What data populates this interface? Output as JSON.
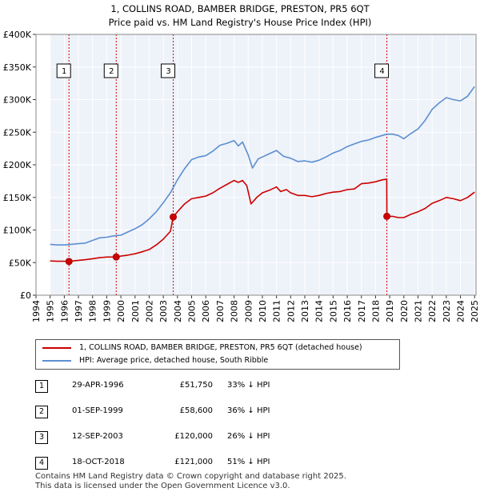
{
  "title_line1": "1, COLLINS ROAD, BAMBER BRIDGE, PRESTON, PR5 6QT",
  "title_line2": "Price paid vs. HM Land Registry's House Price Index (HPI)",
  "legend": {
    "property_label": "1, COLLINS ROAD, BAMBER BRIDGE, PRESTON, PR5 6QT (detached house)",
    "hpi_label": "HPI: Average price, detached house, South Ribble",
    "property_color": "#cc0000",
    "hpi_color": "#5b8fd0"
  },
  "sales": [
    {
      "num": "1",
      "date": "29-APR-1996",
      "price": "£51,750",
      "hpi": "33% ↓ HPI"
    },
    {
      "num": "2",
      "date": "01-SEP-1999",
      "price": "£58,600",
      "hpi": "36% ↓ HPI"
    },
    {
      "num": "3",
      "date": "12-SEP-2003",
      "price": "£120,000",
      "hpi": "26% ↓ HPI"
    },
    {
      "num": "4",
      "date": "18-OCT-2018",
      "price": "£121,000",
      "hpi": "51% ↓ HPI"
    }
  ],
  "footer_line1": "Contains HM Land Registry data © Crown copyright and database right 2025.",
  "footer_line2": "This data is licensed under the Open Government Licence v3.0.",
  "chart_data": {
    "type": "line",
    "title": "1, COLLINS ROAD, BAMBER BRIDGE, PRESTON, PR5 6QT — Price paid vs. HM Land Registry's House Price Index (HPI)",
    "xlabel": "",
    "ylabel": "",
    "xlim": [
      1994,
      2025.1
    ],
    "ylim": [
      0,
      400000
    ],
    "x_ticks": [
      "1994",
      "1995",
      "1996",
      "1997",
      "1998",
      "1999",
      "2000",
      "2001",
      "2002",
      "2003",
      "2004",
      "2005",
      "2006",
      "2007",
      "2008",
      "2009",
      "2010",
      "2011",
      "2012",
      "2013",
      "2014",
      "2015",
      "2016",
      "2017",
      "2018",
      "2019",
      "2020",
      "2021",
      "2022",
      "2023",
      "2024",
      "2025"
    ],
    "y_ticks": [
      {
        "value": 0,
        "label": "£0"
      },
      {
        "value": 50000,
        "label": "£50K"
      },
      {
        "value": 100000,
        "label": "£100K"
      },
      {
        "value": 150000,
        "label": "£150K"
      },
      {
        "value": 200000,
        "label": "£200K"
      },
      {
        "value": 250000,
        "label": "£250K"
      },
      {
        "value": 300000,
        "label": "£300K"
      },
      {
        "value": 350000,
        "label": "£350K"
      },
      {
        "value": 400000,
        "label": "£400K"
      }
    ],
    "grid": true,
    "data_start": 1995,
    "series": [
      {
        "name": "1, COLLINS ROAD, BAMBER BRIDGE, PRESTON, PR5 6QT (detached house)",
        "color": "#cc0000",
        "points": [
          [
            1995,
            52500
          ],
          [
            1995.5,
            52000
          ],
          [
            1996.0,
            52000
          ],
          [
            1996.33,
            51750
          ],
          [
            1996.8,
            53000
          ],
          [
            1997.5,
            54500
          ],
          [
            1998.0,
            56000
          ],
          [
            1998.5,
            57500
          ],
          [
            1999.0,
            58500
          ],
          [
            1999.67,
            58600
          ],
          [
            2000.0,
            60000
          ],
          [
            2000.5,
            61500
          ],
          [
            2001.0,
            63500
          ],
          [
            2001.5,
            66500
          ],
          [
            2002.0,
            70000
          ],
          [
            2002.5,
            77000
          ],
          [
            2003.0,
            86000
          ],
          [
            2003.5,
            98000
          ],
          [
            2003.7,
            120000
          ],
          [
            2004.0,
            128000
          ],
          [
            2004.5,
            140000
          ],
          [
            2005.0,
            148000
          ],
          [
            2005.5,
            150000
          ],
          [
            2006.0,
            152000
          ],
          [
            2006.5,
            157000
          ],
          [
            2007.0,
            164000
          ],
          [
            2007.5,
            170000
          ],
          [
            2008.0,
            176000
          ],
          [
            2008.3,
            173000
          ],
          [
            2008.6,
            176000
          ],
          [
            2008.9,
            168000
          ],
          [
            2009.2,
            140000
          ],
          [
            2009.6,
            150000
          ],
          [
            2010.0,
            157000
          ],
          [
            2010.5,
            161000
          ],
          [
            2011.0,
            166000
          ],
          [
            2011.3,
            159000
          ],
          [
            2011.7,
            162000
          ],
          [
            2012.0,
            157000
          ],
          [
            2012.5,
            153000
          ],
          [
            2013.0,
            153000
          ],
          [
            2013.5,
            151000
          ],
          [
            2014.0,
            153000
          ],
          [
            2014.5,
            156000
          ],
          [
            2015.0,
            158000
          ],
          [
            2015.5,
            159000
          ],
          [
            2016.0,
            162000
          ],
          [
            2016.5,
            163000
          ],
          [
            2017.0,
            171000
          ],
          [
            2017.5,
            172000
          ],
          [
            2018.0,
            174000
          ],
          [
            2018.5,
            177000
          ],
          [
            2018.79,
            178000
          ],
          [
            2018.8,
            121000
          ],
          [
            2019.2,
            121000
          ],
          [
            2019.6,
            119000
          ],
          [
            2020.0,
            119000
          ],
          [
            2020.5,
            124000
          ],
          [
            2021.0,
            128000
          ],
          [
            2021.5,
            133000
          ],
          [
            2022.0,
            141000
          ],
          [
            2022.5,
            145000
          ],
          [
            2023.0,
            150000
          ],
          [
            2023.5,
            148000
          ],
          [
            2024.0,
            145000
          ],
          [
            2024.5,
            150000
          ],
          [
            2025.0,
            158000
          ]
        ]
      },
      {
        "name": "HPI: Average price, detached house, South Ribble",
        "color": "#5b8fd0",
        "points": [
          [
            1995,
            78000
          ],
          [
            1995.5,
            77000
          ],
          [
            1996.0,
            77000
          ],
          [
            1996.5,
            78000
          ],
          [
            1997.0,
            79000
          ],
          [
            1997.5,
            80000
          ],
          [
            1998.0,
            84000
          ],
          [
            1998.5,
            88000
          ],
          [
            1999.0,
            89000
          ],
          [
            1999.5,
            91000
          ],
          [
            2000.0,
            92000
          ],
          [
            2000.5,
            97000
          ],
          [
            2001.0,
            102000
          ],
          [
            2001.5,
            108000
          ],
          [
            2002.0,
            117000
          ],
          [
            2002.5,
            128000
          ],
          [
            2003.0,
            142000
          ],
          [
            2003.5,
            157000
          ],
          [
            2004.0,
            177000
          ],
          [
            2004.5,
            194000
          ],
          [
            2005.0,
            208000
          ],
          [
            2005.5,
            212000
          ],
          [
            2006.0,
            214000
          ],
          [
            2006.5,
            221000
          ],
          [
            2007.0,
            230000
          ],
          [
            2007.5,
            233000
          ],
          [
            2008.0,
            237000
          ],
          [
            2008.3,
            229000
          ],
          [
            2008.6,
            235000
          ],
          [
            2009.0,
            215000
          ],
          [
            2009.3,
            195000
          ],
          [
            2009.7,
            209000
          ],
          [
            2010.0,
            212000
          ],
          [
            2010.5,
            217000
          ],
          [
            2011.0,
            222000
          ],
          [
            2011.5,
            213000
          ],
          [
            2012.0,
            210000
          ],
          [
            2012.5,
            205000
          ],
          [
            2013.0,
            206000
          ],
          [
            2013.5,
            204000
          ],
          [
            2014.0,
            207000
          ],
          [
            2014.5,
            212000
          ],
          [
            2015.0,
            218000
          ],
          [
            2015.5,
            222000
          ],
          [
            2016.0,
            228000
          ],
          [
            2016.5,
            232000
          ],
          [
            2017.0,
            236000
          ],
          [
            2017.5,
            238000
          ],
          [
            2018.0,
            242000
          ],
          [
            2018.8,
            247000
          ],
          [
            2019.2,
            247000
          ],
          [
            2019.6,
            245000
          ],
          [
            2020.0,
            240000
          ],
          [
            2020.5,
            248000
          ],
          [
            2021.0,
            255000
          ],
          [
            2021.5,
            268000
          ],
          [
            2022.0,
            285000
          ],
          [
            2022.5,
            295000
          ],
          [
            2023.0,
            303000
          ],
          [
            2023.5,
            300000
          ],
          [
            2024.0,
            298000
          ],
          [
            2024.5,
            305000
          ],
          [
            2025.0,
            320000
          ]
        ]
      }
    ],
    "sale_markers": [
      {
        "num": "1",
        "x": 1996.33,
        "price": 51750
      },
      {
        "num": "2",
        "x": 1999.67,
        "price": 58600
      },
      {
        "num": "3",
        "x": 2003.7,
        "price": 120000
      },
      {
        "num": "4",
        "x": 2018.8,
        "price": 121000
      }
    ]
  }
}
